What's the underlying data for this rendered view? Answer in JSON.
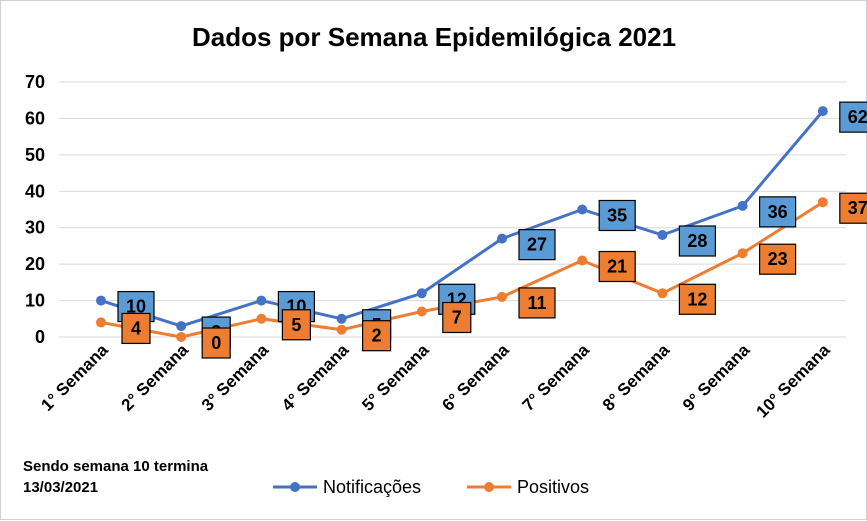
{
  "chart_data": {
    "type": "line",
    "title": "Dados por Semana Epidemilógica 2021",
    "categories": [
      "1° Semana",
      "2° Semana",
      "3° Semana",
      "4° Semana",
      "5° Semana",
      "6° Semana",
      "7° Semana",
      "8° Semana",
      "9° Semana",
      "10° Semana"
    ],
    "series": [
      {
        "name": "Notificações",
        "color": "#4472c4",
        "label_fill": "#5b9bd5",
        "values": [
          10,
          3,
          10,
          5,
          12,
          27,
          35,
          28,
          36,
          62
        ]
      },
      {
        "name": "Positivos",
        "color": "#ed7d31",
        "label_fill": "#ed7d31",
        "values": [
          4,
          0,
          5,
          2,
          7,
          11,
          21,
          12,
          23,
          37
        ]
      }
    ],
    "ylim": [
      0,
      70
    ],
    "yticks": [
      0,
      10,
      20,
      30,
      40,
      50,
      60,
      70
    ],
    "grid": true,
    "legend_position": "bottom-center"
  },
  "note": {
    "line1": "Sendo semana 10 termina",
    "line2": "13/03/2021"
  }
}
